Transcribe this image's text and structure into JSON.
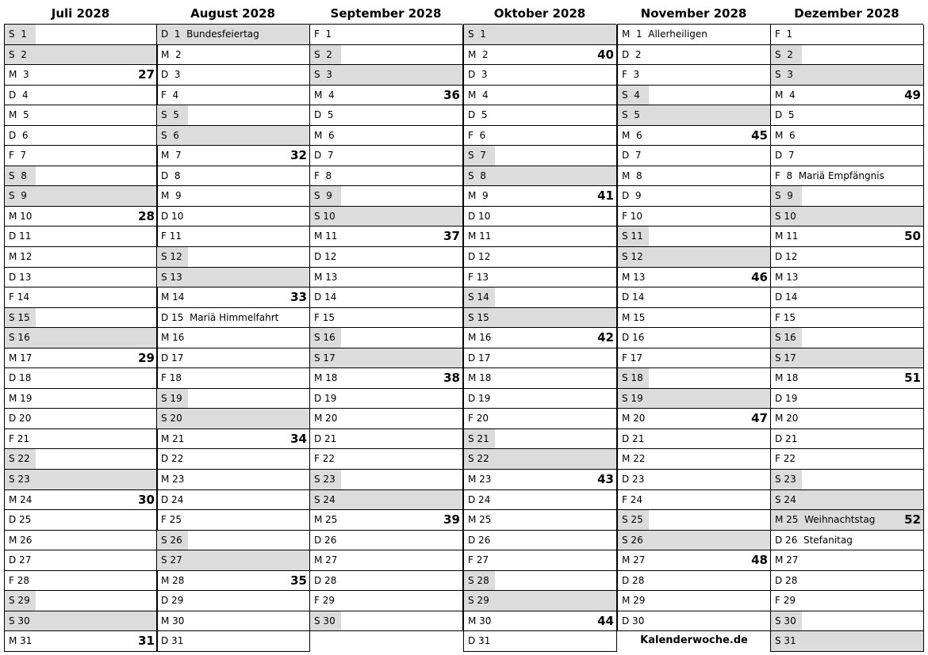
{
  "weekday_letters": [
    "S",
    "M",
    "D",
    "M",
    "D",
    "F",
    "S"
  ],
  "colors": {
    "weekend_shade": "#dcdcdc"
  },
  "footer": "Kalenderwoche.de",
  "months": [
    {
      "title": "Juli 2028",
      "month_index": 6,
      "days": 31,
      "weeks": {
        "3": "27",
        "10": "28",
        "17": "29",
        "24": "30",
        "31": "31"
      },
      "holidays": {},
      "shaded_holidays": []
    },
    {
      "title": "August 2028",
      "month_index": 7,
      "days": 31,
      "weeks": {
        "7": "32",
        "14": "33",
        "21": "34",
        "28": "35"
      },
      "holidays": {
        "1": "Bundesfeiertag",
        "15": "Mariä Himmelfahrt"
      },
      "shaded_holidays": [
        1
      ]
    },
    {
      "title": "September 2028",
      "month_index": 8,
      "days": 30,
      "weeks": {
        "4": "36",
        "11": "37",
        "18": "38",
        "25": "39"
      },
      "holidays": {},
      "shaded_holidays": []
    },
    {
      "title": "Oktober 2028",
      "month_index": 9,
      "days": 31,
      "weeks": {
        "2": "40",
        "9": "41",
        "16": "42",
        "23": "43",
        "30": "44"
      },
      "holidays": {},
      "shaded_holidays": []
    },
    {
      "title": "November 2028",
      "month_index": 10,
      "days": 30,
      "weeks": {
        "6": "45",
        "13": "46",
        "20": "47",
        "27": "48"
      },
      "holidays": {
        "1": "Allerheiligen"
      },
      "shaded_holidays": []
    },
    {
      "title": "Dezember 2028",
      "month_index": 11,
      "days": 31,
      "weeks": {
        "4": "49",
        "11": "50",
        "18": "51",
        "25": "52"
      },
      "holidays": {
        "8": "Mariä Empfängnis",
        "25": "Weihnachtstag",
        "26": "Stefanitag"
      },
      "shaded_holidays": [
        25
      ]
    }
  ]
}
